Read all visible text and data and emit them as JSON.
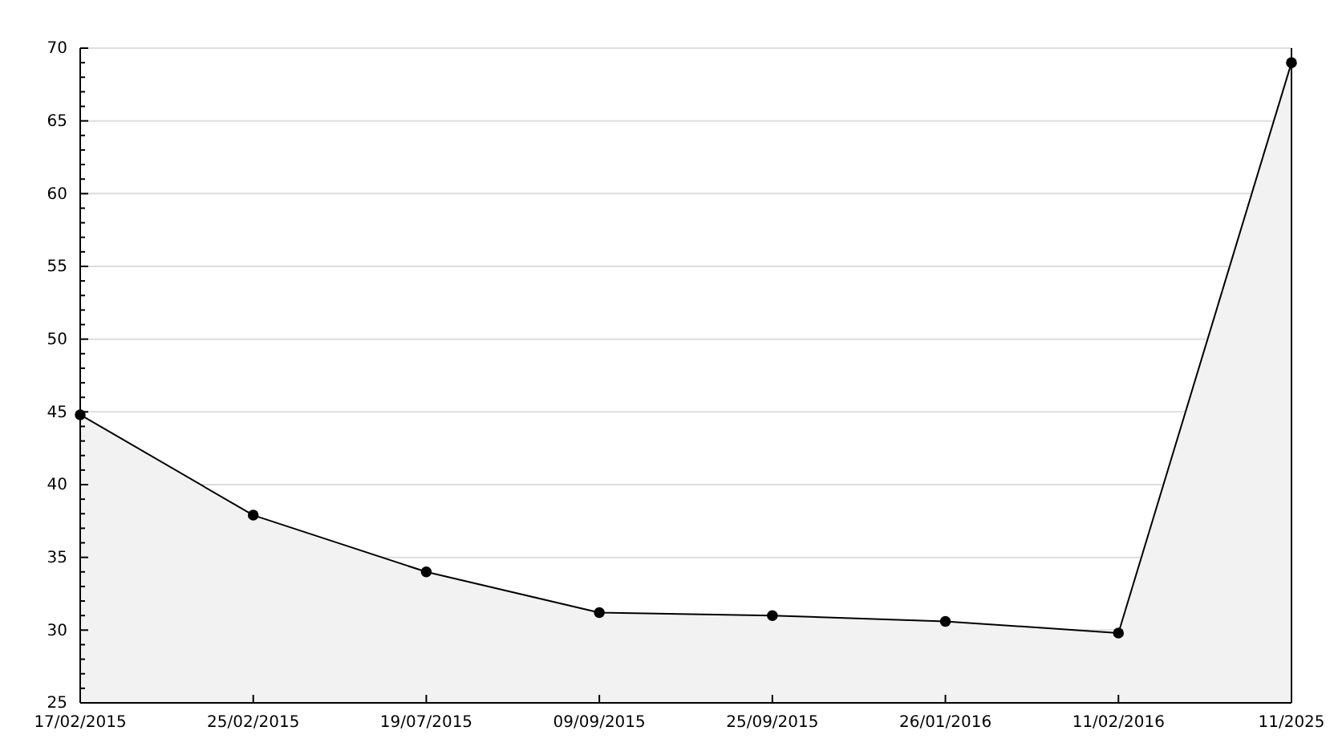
{
  "chart_data": {
    "type": "area",
    "categories": [
      "17/02/2015",
      "25/02/2015",
      "19/07/2015",
      "09/09/2015",
      "25/09/2015",
      "26/01/2016",
      "11/02/2016",
      "11/2025"
    ],
    "series": [
      {
        "color": "#000000",
        "values": [
          44.8,
          37.9,
          34.0,
          31.2,
          31.0,
          30.6,
          29.8,
          69.0
        ]
      }
    ],
    "ylim": [
      25,
      70
    ],
    "yticks": [
      25,
      {
        "value": 26,
        "label": null
      },
      {
        "value": 27,
        "label": null
      },
      {
        "value": 28,
        "label": null
      },
      {
        "value": 29,
        "label": null
      },
      30,
      {
        "value": 31,
        "label": null
      },
      {
        "value": 32,
        "label": null
      },
      {
        "value": 33,
        "label": null
      },
      {
        "value": 34,
        "label": null
      },
      35,
      {
        "value": 36,
        "label": null
      },
      {
        "value": 37,
        "label": null
      },
      {
        "value": 38,
        "label": null
      },
      {
        "value": 39,
        "label": null
      },
      40,
      {
        "value": 41,
        "label": null
      },
      {
        "value": 42,
        "label": null
      },
      {
        "value": 43,
        "label": null
      },
      {
        "value": 44,
        "label": null
      },
      45,
      {
        "value": 46,
        "label": null
      },
      {
        "value": 47,
        "label": null
      },
      {
        "value": 48,
        "label": null
      },
      {
        "value": 49,
        "label": null
      },
      50,
      {
        "value": 51,
        "label": null
      },
      {
        "value": 52,
        "label": null
      },
      {
        "value": 53,
        "label": null
      },
      {
        "value": 54,
        "label": null
      },
      55,
      {
        "value": 56,
        "label": null
      },
      {
        "value": 57,
        "label": null
      },
      {
        "value": 58,
        "label": null
      },
      {
        "value": 59,
        "label": null
      },
      60,
      {
        "value": 61,
        "label": null
      },
      {
        "value": 62,
        "label": null
      },
      {
        "value": 63,
        "label": null
      },
      {
        "value": 64,
        "label": null
      },
      65,
      {
        "value": 66,
        "label": null
      },
      {
        "value": 67,
        "label": null
      },
      {
        "value": 68,
        "label": null
      },
      {
        "value": 69,
        "label": null
      },
      70
    ],
    "grid": "y",
    "marker": "circle"
  }
}
